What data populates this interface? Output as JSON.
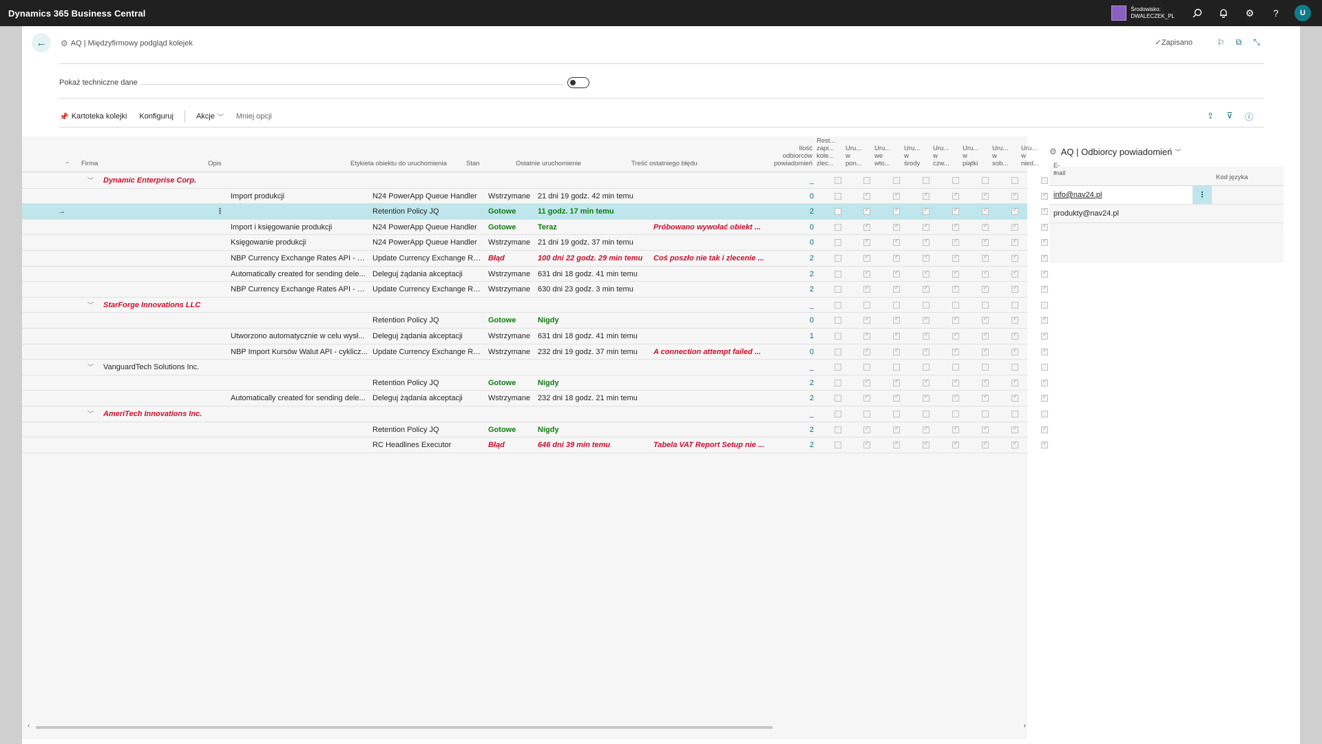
{
  "app": {
    "title": "Dynamics 365 Business Central",
    "environment_line1": "Środowisko:",
    "environment_line2": "DWALECZEK_PL",
    "avatar_initial": "U"
  },
  "page": {
    "caption": "AQ | Międzyfirmowy podgląd kolejek",
    "saved_label": "Zapisano"
  },
  "field": {
    "label": "Pokaż techniczne dane",
    "value": false
  },
  "actions": {
    "queue_card": "Kartoteka kolejki",
    "configure": "Konfiguruj",
    "actions_menu": "Akcje",
    "less_options": "Mniej opcji"
  },
  "columns": {
    "company": "Firma",
    "description": "Opis",
    "object_caption": "Etykieta obiektu do uruchomienia",
    "status": "Stan",
    "last_run": "Ostatnie uruchomienie",
    "last_error": "Treść ostatniego błędu",
    "recipients_l1": "Ilość",
    "recipients_l2": "odbiorców",
    "recipients_l3": "powiadomień",
    "restart_l1": "Rest...",
    "restart_l2": "zapi...",
    "restart_l3": "kole...",
    "restart_l4": "zlec...",
    "days": [
      {
        "l1": "Uru...",
        "l2": "w",
        "l3": "pon..."
      },
      {
        "l1": "Uru...",
        "l2": "we",
        "l3": "wto..."
      },
      {
        "l1": "Uru...",
        "l2": "w",
        "l3": "środy"
      },
      {
        "l1": "Uru...",
        "l2": "w",
        "l3": "czw..."
      },
      {
        "l1": "Uru...",
        "l2": "w",
        "l3": "piątki"
      },
      {
        "l1": "Uru...",
        "l2": "w",
        "l3": "sob..."
      },
      {
        "l1": "Uru...",
        "l2": "w",
        "l3": "nied..."
      }
    ]
  },
  "rows": [
    {
      "kind": "group",
      "company": "Dynamic Enterprise Corp.",
      "italic": true,
      "count": "_",
      "checks": [
        false,
        false,
        false,
        false,
        false,
        false,
        false,
        false
      ]
    },
    {
      "kind": "item",
      "description": "Import produkcji",
      "object": "N24 PowerApp Queue Handler",
      "status": "Wstrzymane",
      "status_style": "normal",
      "last_run": "21 dni 19 godz. 42 min temu",
      "run_style": "normal",
      "error": "",
      "count": "0",
      "checks": [
        false,
        true,
        true,
        true,
        true,
        true,
        true,
        true
      ]
    },
    {
      "kind": "item",
      "selected": true,
      "description": "",
      "object": "Retention Policy JQ",
      "status": "Gotowe",
      "status_style": "green",
      "last_run": "11 godz. 17 min temu",
      "run_style": "green",
      "error": "",
      "count": "2",
      "checks": [
        false,
        true,
        true,
        true,
        true,
        true,
        true,
        true
      ]
    },
    {
      "kind": "item",
      "description": "Import i księgowanie produkcji",
      "object": "N24 PowerApp Queue Handler",
      "status": "Gotowe",
      "status_style": "green",
      "last_run": "Teraz",
      "run_style": "green",
      "error": "Próbowano wywołać obiekt ...",
      "count": "0",
      "checks": [
        false,
        true,
        true,
        true,
        true,
        true,
        true,
        true
      ]
    },
    {
      "kind": "item",
      "description": "Księgowanie produkcji",
      "object": "N24 PowerApp Queue Handler",
      "status": "Wstrzymane",
      "status_style": "normal",
      "last_run": "21 dni 19 godz. 37 min temu",
      "run_style": "normal",
      "error": "",
      "count": "0",
      "checks": [
        false,
        true,
        true,
        true,
        true,
        true,
        true,
        true
      ]
    },
    {
      "kind": "item",
      "description": "NBP Currency Exchange Rates API - pe...",
      "object": "Update Currency Exchange Rat...",
      "status": "Błąd",
      "status_style": "red",
      "last_run": "100 dni 22 godz. 29 min temu",
      "run_style": "red",
      "error": "Coś poszło nie tak i zlecenie ...",
      "count": "2",
      "checks": [
        false,
        true,
        true,
        true,
        true,
        true,
        true,
        true
      ]
    },
    {
      "kind": "item",
      "description": "Automatically created for sending dele...",
      "object": "Deleguj żądania akceptacji",
      "status": "Wstrzymane",
      "status_style": "normal",
      "last_run": "631 dni 18 godz. 41 min temu",
      "run_style": "normal",
      "error": "",
      "count": "2",
      "checks": [
        false,
        true,
        true,
        true,
        true,
        true,
        true,
        true
      ]
    },
    {
      "kind": "item",
      "description": "NBP Currency Exchange Rates API - pe...",
      "object": "Update Currency Exchange Rat...",
      "status": "Wstrzymane",
      "status_style": "normal",
      "last_run": "630 dni 23 godz. 3 min temu",
      "run_style": "normal",
      "error": "",
      "count": "2",
      "checks": [
        false,
        true,
        true,
        true,
        true,
        true,
        true,
        true
      ]
    },
    {
      "kind": "group",
      "company": "StarForge Innovations LLC",
      "italic": true,
      "count": "_",
      "checks": [
        false,
        false,
        false,
        false,
        false,
        false,
        false,
        false
      ]
    },
    {
      "kind": "item",
      "description": "",
      "object": "Retention Policy JQ",
      "status": "Gotowe",
      "status_style": "green",
      "last_run": "Nigdy",
      "run_style": "green",
      "error": "",
      "count": "0",
      "checks": [
        false,
        true,
        true,
        true,
        true,
        true,
        true,
        true
      ]
    },
    {
      "kind": "item",
      "description": "Utworzono automatycznie w celu wysł...",
      "object": "Deleguj żądania akceptacji",
      "status": "Wstrzymane",
      "status_style": "normal",
      "last_run": "631 dni 18 godz. 41 min temu",
      "run_style": "normal",
      "error": "",
      "count": "1",
      "checks": [
        false,
        true,
        true,
        true,
        true,
        true,
        true,
        true
      ]
    },
    {
      "kind": "item",
      "description": "NBP Import Kursów Walut API - cyklicz...",
      "object": "Update Currency Exchange Rat...",
      "status": "Wstrzymane",
      "status_style": "normal",
      "last_run": "232 dni 19 godz. 37 min temu",
      "run_style": "normal",
      "error": "A connection attempt failed ...",
      "count": "0",
      "checks": [
        false,
        true,
        true,
        true,
        true,
        true,
        true,
        true
      ]
    },
    {
      "kind": "group",
      "company": "VanguardTech Solutions Inc.",
      "italic": false,
      "count": "_",
      "checks": [
        false,
        false,
        false,
        false,
        false,
        false,
        false,
        false
      ]
    },
    {
      "kind": "item",
      "description": "",
      "object": "Retention Policy JQ",
      "status": "Gotowe",
      "status_style": "green",
      "last_run": "Nigdy",
      "run_style": "green",
      "error": "",
      "count": "2",
      "checks": [
        false,
        true,
        true,
        true,
        true,
        true,
        true,
        true
      ]
    },
    {
      "kind": "item",
      "description": "Automatically created for sending dele...",
      "object": "Deleguj żądania akceptacji",
      "status": "Wstrzymane",
      "status_style": "normal",
      "last_run": "232 dni 18 godz. 21 min temu",
      "run_style": "normal",
      "error": "",
      "count": "2",
      "checks": [
        false,
        true,
        true,
        true,
        true,
        true,
        true,
        true
      ]
    },
    {
      "kind": "group",
      "company": "AmeriTech Innovations Inc.",
      "italic": true,
      "count": "_",
      "checks": [
        false,
        false,
        false,
        false,
        false,
        false,
        false,
        false
      ]
    },
    {
      "kind": "item",
      "description": "",
      "object": "Retention Policy JQ",
      "status": "Gotowe",
      "status_style": "green",
      "last_run": "Nigdy",
      "run_style": "green",
      "error": "",
      "count": "2",
      "checks": [
        false,
        true,
        true,
        true,
        true,
        true,
        true,
        true
      ]
    },
    {
      "kind": "item",
      "description": "",
      "object": "RC Headlines Executor",
      "status": "Błąd",
      "status_style": "red",
      "last_run": "646 dni 39 min temu",
      "run_style": "red",
      "error": "Tabela VAT Report Setup nie ...",
      "count": "2",
      "checks": [
        false,
        true,
        true,
        true,
        true,
        true,
        true,
        true
      ]
    }
  ],
  "factbox": {
    "title": "AQ | Odbiorcy powiadomień",
    "col_email": "E-mail",
    "col_lang": "Kod języka",
    "emails": [
      "info@nav24.pl",
      "produkty@nav24.pl"
    ]
  }
}
